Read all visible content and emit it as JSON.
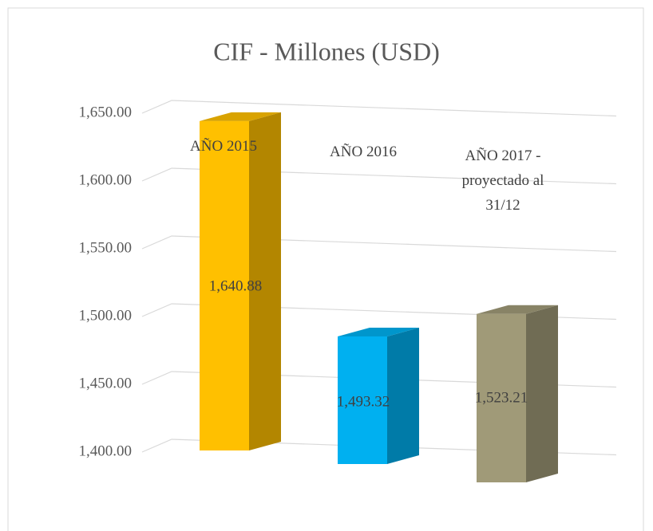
{
  "chart_data": {
    "type": "bar3d",
    "title": "CIF - Millones (USD)",
    "categories": [
      "AÑO 2015",
      "AÑO 2016",
      "AÑO 2017 - proyectado al 31/12"
    ],
    "values": [
      1640.88,
      1493.32,
      1523.21
    ],
    "value_labels": [
      "1,640.88",
      "1,493.32",
      "1,523.21"
    ],
    "colors": [
      "#ffc000",
      "#00b0f0",
      "#a09a78"
    ],
    "ylim": [
      1400,
      1650
    ],
    "yticks": [
      {
        "value": 1400,
        "label": "1,400.00"
      },
      {
        "value": 1450,
        "label": "1,450.00"
      },
      {
        "value": 1500,
        "label": "1,500.00"
      },
      {
        "value": 1550,
        "label": "1,550.00"
      },
      {
        "value": 1600,
        "label": "1,600.00"
      },
      {
        "value": 1650,
        "label": "1,650.00"
      }
    ],
    "grid": true
  }
}
